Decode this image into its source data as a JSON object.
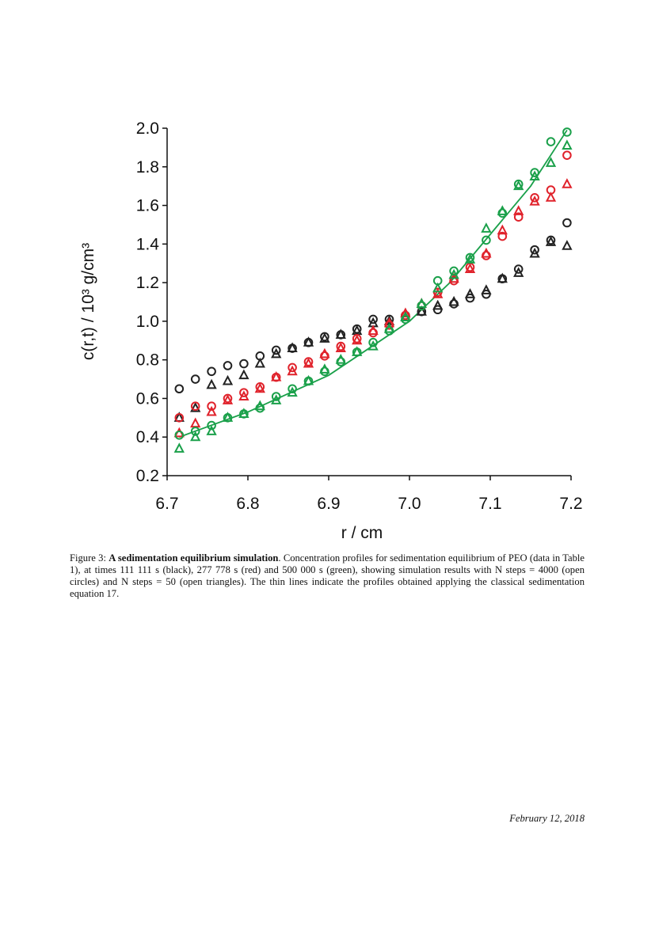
{
  "chart_data": {
    "type": "scatter",
    "ylabel": "c(r,t)  / 10³ g/cm³",
    "xlabel": "r / cm",
    "xlim": [
      6.7,
      7.2
    ],
    "ylim": [
      0.2,
      2.0
    ],
    "xticks": [
      6.7,
      6.8,
      6.9,
      {
        "value": 7.0,
        "label": "7.0"
      },
      7.1,
      7.2
    ],
    "yticks": [
      0.2,
      0.4,
      0.6,
      0.8,
      {
        "value": 1.0,
        "label": "1.0"
      },
      1.2,
      1.4,
      1.6,
      1.8,
      {
        "value": 2.0,
        "label": "2.0"
      }
    ],
    "x": [
      6.715,
      6.735,
      6.755,
      6.775,
      6.795,
      6.815,
      6.835,
      6.855,
      6.875,
      6.895,
      6.915,
      6.935,
      6.955,
      6.975,
      6.995,
      7.015,
      7.035,
      7.055,
      7.075,
      7.095,
      7.115,
      7.135,
      7.155,
      7.175,
      7.195
    ],
    "series": [
      {
        "color": "#222222",
        "marker": "circle",
        "values": [
          0.65,
          0.7,
          0.74,
          0.77,
          0.78,
          0.82,
          0.85,
          0.86,
          0.89,
          0.92,
          0.93,
          0.96,
          1.01,
          1.01,
          1.03,
          1.05,
          1.06,
          1.09,
          1.12,
          1.14,
          1.22,
          1.27,
          1.37,
          1.42,
          1.51
        ]
      },
      {
        "color": "#222222",
        "marker": "triangle",
        "values": [
          0.5,
          0.55,
          0.67,
          0.69,
          0.72,
          0.78,
          0.83,
          0.86,
          0.89,
          0.91,
          0.93,
          0.95,
          0.99,
          1.0,
          1.02,
          1.05,
          1.08,
          1.1,
          1.14,
          1.16,
          1.22,
          1.25,
          1.35,
          1.41,
          1.39
        ]
      },
      {
        "color": "#e0222b",
        "marker": "circle",
        "values": [
          0.5,
          0.56,
          0.56,
          0.6,
          0.63,
          0.66,
          0.71,
          0.76,
          0.79,
          0.82,
          0.87,
          0.91,
          0.94,
          0.98,
          1.03,
          1.08,
          1.15,
          1.21,
          1.28,
          1.34,
          1.44,
          1.54,
          1.64,
          1.68,
          1.86
        ]
      },
      {
        "color": "#e0222b",
        "marker": "triangle",
        "values": [
          0.42,
          0.47,
          0.53,
          0.59,
          0.61,
          0.65,
          0.71,
          0.74,
          0.78,
          0.83,
          0.86,
          0.9,
          0.95,
          0.99,
          1.04,
          1.09,
          1.14,
          1.22,
          1.27,
          1.35,
          1.47,
          1.57,
          1.62,
          1.64,
          1.71
        ]
      },
      {
        "color": "#1aa04a",
        "marker": "circle",
        "values": [
          0.41,
          0.43,
          0.46,
          0.5,
          0.52,
          0.55,
          0.61,
          0.65,
          0.69,
          0.74,
          0.79,
          0.84,
          0.89,
          0.95,
          1.01,
          1.08,
          1.21,
          1.26,
          1.33,
          1.42,
          1.56,
          1.71,
          1.77,
          1.93,
          1.98
        ]
      },
      {
        "color": "#1aa04a",
        "marker": "triangle",
        "values": [
          0.34,
          0.4,
          0.43,
          0.5,
          0.52,
          0.56,
          0.59,
          0.63,
          0.69,
          0.75,
          0.8,
          0.84,
          0.87,
          0.96,
          1.02,
          1.09,
          1.17,
          1.24,
          1.32,
          1.48,
          1.57,
          1.7,
          1.75,
          1.82,
          1.91
        ]
      }
    ],
    "lines": [
      {
        "color": "#1aa04a",
        "x": [
          6.715,
          6.8,
          6.9,
          7.0,
          7.05,
          7.1,
          7.15,
          7.195
        ],
        "values": [
          0.4,
          0.53,
          0.72,
          1.0,
          1.2,
          1.45,
          1.7,
          1.99
        ]
      }
    ]
  },
  "caption": {
    "label": "Figure 3:",
    "title": "A sedimentation equilibrium simulation",
    "text": ". Concentration profiles for sedimentation equilibrium of PEO (data in Table 1), at times 111 111 s (black), 277 778 s (red) and 500 000 s (green), showing simulation results with N steps = 4000 (open circles) and N steps = 50 (open triangles). The thin lines indicate the profiles obtained applying the classical sedimentation equation 17."
  },
  "footer": {
    "date": "February 12, 2018"
  }
}
